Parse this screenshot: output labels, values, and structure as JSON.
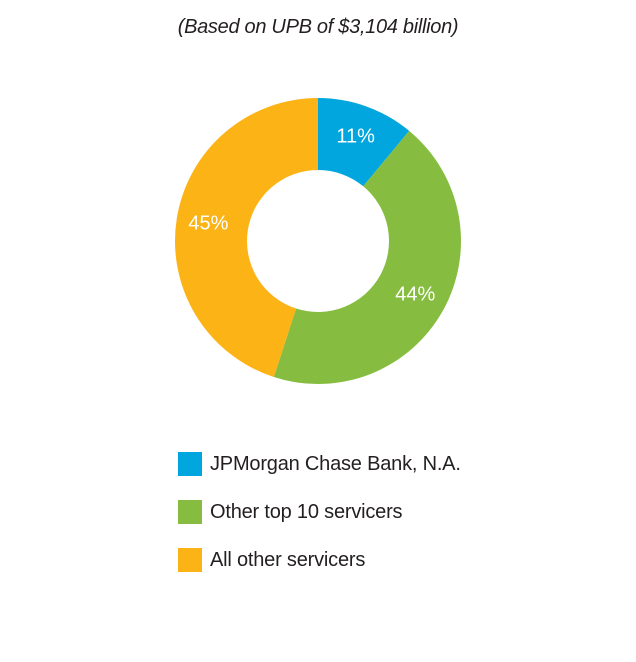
{
  "chart_data": {
    "type": "pie",
    "subtitle": "(Based on UPB of $3,104 billion)",
    "donut": true,
    "categories": [
      "JPMorgan Chase Bank, N.A.",
      "Other top 10 servicers",
      "All other servicers"
    ],
    "values": [
      11,
      44,
      45
    ],
    "value_labels": [
      "11%",
      "44%",
      "45%"
    ],
    "colors": [
      "#00a6dd",
      "#86bd40",
      "#fcb316"
    ],
    "legend_position": "bottom"
  }
}
